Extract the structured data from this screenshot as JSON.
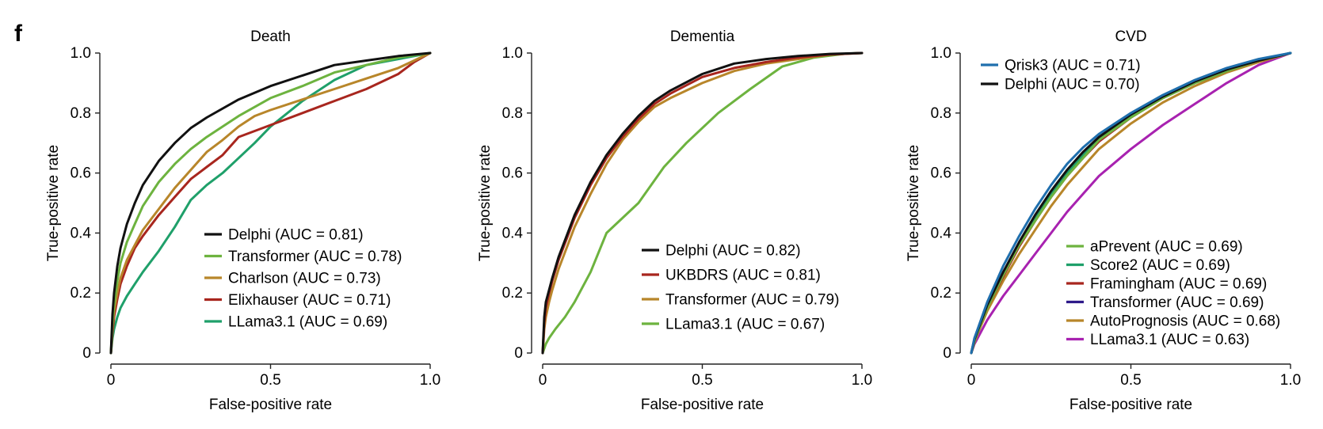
{
  "figure": {
    "panel_label": "f"
  },
  "chart_data": [
    {
      "type": "line",
      "title": "Death",
      "xlabel": "False-positive rate",
      "ylabel": "True-positive rate",
      "xlim": [
        0,
        1
      ],
      "ylim": [
        0,
        1
      ],
      "xticks": [
        "0",
        "0.5",
        "1.0"
      ],
      "yticks": [
        "0",
        "0.2",
        "0.4",
        "0.6",
        "0.8",
        "1.0"
      ],
      "grid": false,
      "legend_position": "bottom-right",
      "series": [
        {
          "name": "Delphi (AUC = 0.81)",
          "color": "#111111",
          "x": [
            0,
            0.005,
            0.01,
            0.02,
            0.03,
            0.05,
            0.075,
            0.1,
            0.15,
            0.2,
            0.25,
            0.3,
            0.4,
            0.5,
            0.6,
            0.7,
            0.8,
            0.9,
            1.0
          ],
          "y": [
            0,
            0.13,
            0.2,
            0.29,
            0.35,
            0.43,
            0.5,
            0.56,
            0.64,
            0.7,
            0.75,
            0.785,
            0.845,
            0.89,
            0.925,
            0.96,
            0.975,
            0.99,
            1.0
          ]
        },
        {
          "name": "Transformer (AUC = 0.78)",
          "color": "#6db33f",
          "x": [
            0,
            0.005,
            0.01,
            0.02,
            0.03,
            0.05,
            0.075,
            0.1,
            0.15,
            0.2,
            0.25,
            0.3,
            0.4,
            0.5,
            0.6,
            0.7,
            0.8,
            0.9,
            1.0
          ],
          "y": [
            0,
            0.1,
            0.16,
            0.24,
            0.3,
            0.37,
            0.43,
            0.49,
            0.57,
            0.63,
            0.68,
            0.72,
            0.79,
            0.85,
            0.89,
            0.935,
            0.96,
            0.985,
            1.0
          ]
        },
        {
          "name": "Charlson (AUC = 0.73)",
          "color": "#b8862a",
          "x": [
            0,
            0.005,
            0.01,
            0.02,
            0.03,
            0.05,
            0.075,
            0.1,
            0.15,
            0.2,
            0.25,
            0.3,
            0.35,
            0.4,
            0.45,
            0.5,
            0.6,
            0.7,
            0.8,
            0.9,
            1.0
          ],
          "y": [
            0,
            0.09,
            0.14,
            0.2,
            0.25,
            0.31,
            0.36,
            0.41,
            0.48,
            0.55,
            0.61,
            0.67,
            0.71,
            0.755,
            0.79,
            0.81,
            0.845,
            0.88,
            0.915,
            0.95,
            1.0
          ]
        },
        {
          "name": "Elixhauser (AUC = 0.71)",
          "color": "#a8261e",
          "x": [
            0,
            0.005,
            0.01,
            0.02,
            0.03,
            0.05,
            0.075,
            0.1,
            0.15,
            0.2,
            0.25,
            0.3,
            0.35,
            0.4,
            0.5,
            0.6,
            0.7,
            0.8,
            0.9,
            0.95,
            1.0
          ],
          "y": [
            0,
            0.07,
            0.12,
            0.18,
            0.23,
            0.29,
            0.35,
            0.39,
            0.46,
            0.52,
            0.58,
            0.62,
            0.66,
            0.72,
            0.76,
            0.8,
            0.84,
            0.88,
            0.93,
            0.97,
            1.0
          ]
        },
        {
          "name": "LLama3.1 (AUC = 0.69)",
          "color": "#1fa06a",
          "x": [
            0,
            0.005,
            0.01,
            0.02,
            0.03,
            0.05,
            0.075,
            0.1,
            0.15,
            0.2,
            0.25,
            0.3,
            0.35,
            0.4,
            0.45,
            0.5,
            0.6,
            0.7,
            0.8,
            0.9,
            1.0
          ],
          "y": [
            0,
            0.05,
            0.08,
            0.12,
            0.15,
            0.19,
            0.23,
            0.27,
            0.34,
            0.42,
            0.51,
            0.56,
            0.6,
            0.65,
            0.7,
            0.755,
            0.84,
            0.91,
            0.96,
            0.98,
            1.0
          ]
        }
      ]
    },
    {
      "type": "line",
      "title": "Dementia",
      "xlabel": "False-positive rate",
      "ylabel": "True-positive rate",
      "xlim": [
        0,
        1
      ],
      "ylim": [
        0,
        1
      ],
      "xticks": [
        "0",
        "0.5",
        "1.0"
      ],
      "yticks": [
        "0",
        "0.2",
        "0.4",
        "0.6",
        "0.8",
        "1.0"
      ],
      "grid": false,
      "legend_position": "bottom-right",
      "series": [
        {
          "name": "Delphi (AUC = 0.82)",
          "color": "#111111",
          "x": [
            0,
            0.005,
            0.01,
            0.02,
            0.03,
            0.05,
            0.075,
            0.1,
            0.15,
            0.2,
            0.25,
            0.3,
            0.35,
            0.4,
            0.5,
            0.6,
            0.7,
            0.8,
            0.9,
            1.0
          ],
          "y": [
            0,
            0.12,
            0.17,
            0.21,
            0.25,
            0.32,
            0.39,
            0.46,
            0.57,
            0.66,
            0.73,
            0.79,
            0.84,
            0.875,
            0.93,
            0.965,
            0.98,
            0.99,
            0.997,
            1.0
          ]
        },
        {
          "name": "UKBDRS (AUC = 0.81)",
          "color": "#a8261e",
          "x": [
            0,
            0.005,
            0.01,
            0.02,
            0.03,
            0.05,
            0.075,
            0.1,
            0.15,
            0.2,
            0.25,
            0.3,
            0.35,
            0.4,
            0.5,
            0.6,
            0.7,
            0.8,
            0.9,
            1.0
          ],
          "y": [
            0,
            0.1,
            0.15,
            0.2,
            0.24,
            0.31,
            0.38,
            0.45,
            0.56,
            0.65,
            0.72,
            0.78,
            0.83,
            0.865,
            0.92,
            0.95,
            0.97,
            0.985,
            0.995,
            1.0
          ]
        },
        {
          "name": "Transformer (AUC = 0.79)",
          "color": "#b8862a",
          "x": [
            0,
            0.005,
            0.01,
            0.02,
            0.03,
            0.05,
            0.075,
            0.1,
            0.15,
            0.2,
            0.25,
            0.3,
            0.35,
            0.4,
            0.5,
            0.6,
            0.7,
            0.8,
            0.9,
            1.0
          ],
          "y": [
            0,
            0.08,
            0.12,
            0.17,
            0.21,
            0.28,
            0.35,
            0.42,
            0.53,
            0.63,
            0.71,
            0.77,
            0.82,
            0.85,
            0.9,
            0.94,
            0.965,
            0.98,
            0.995,
            1.0
          ]
        },
        {
          "name": "LLama3.1 (AUC = 0.67)",
          "color": "#6db33f",
          "x": [
            0,
            0.01,
            0.02,
            0.04,
            0.07,
            0.1,
            0.15,
            0.2,
            0.3,
            0.38,
            0.45,
            0.55,
            0.65,
            0.75,
            0.85,
            0.95,
            1.0
          ],
          "y": [
            0,
            0.03,
            0.05,
            0.08,
            0.12,
            0.17,
            0.27,
            0.4,
            0.5,
            0.62,
            0.7,
            0.8,
            0.88,
            0.955,
            0.985,
            0.998,
            1.0
          ]
        }
      ]
    },
    {
      "type": "line",
      "title": "CVD",
      "xlabel": "False-positive rate",
      "ylabel": "True-positive rate",
      "xlim": [
        0,
        1
      ],
      "ylim": [
        0,
        1
      ],
      "xticks": [
        "0",
        "0.5",
        "1.0"
      ],
      "yticks": [
        "0",
        "0.2",
        "0.4",
        "0.6",
        "0.8",
        "1.0"
      ],
      "grid": false,
      "legend_position": "top-left and bottom-right",
      "series": [
        {
          "name": "Qrisk3 (AUC = 0.71)",
          "color": "#1f6fad",
          "legend_group": "top",
          "x": [
            0,
            0.01,
            0.02,
            0.05,
            0.1,
            0.15,
            0.2,
            0.25,
            0.3,
            0.35,
            0.4,
            0.5,
            0.6,
            0.7,
            0.8,
            0.9,
            1.0
          ],
          "y": [
            0,
            0.05,
            0.08,
            0.17,
            0.29,
            0.39,
            0.48,
            0.56,
            0.63,
            0.685,
            0.73,
            0.8,
            0.86,
            0.91,
            0.95,
            0.98,
            1.0
          ]
        },
        {
          "name": "Delphi (AUC = 0.70)",
          "color": "#111111",
          "legend_group": "top",
          "x": [
            0,
            0.01,
            0.02,
            0.05,
            0.1,
            0.15,
            0.2,
            0.25,
            0.3,
            0.35,
            0.4,
            0.5,
            0.6,
            0.7,
            0.8,
            0.9,
            1.0
          ],
          "y": [
            0,
            0.045,
            0.075,
            0.16,
            0.27,
            0.37,
            0.46,
            0.54,
            0.61,
            0.67,
            0.72,
            0.795,
            0.855,
            0.905,
            0.945,
            0.975,
            1.0
          ]
        },
        {
          "name": "aPrevent (AUC = 0.69)",
          "color": "#6db33f",
          "legend_group": "bottom",
          "x": [
            0,
            0.01,
            0.02,
            0.05,
            0.1,
            0.15,
            0.2,
            0.25,
            0.3,
            0.35,
            0.4,
            0.5,
            0.6,
            0.7,
            0.8,
            0.9,
            1.0
          ],
          "y": [
            0,
            0.04,
            0.07,
            0.15,
            0.26,
            0.36,
            0.44,
            0.52,
            0.59,
            0.65,
            0.71,
            0.785,
            0.85,
            0.9,
            0.94,
            0.975,
            1.0
          ]
        },
        {
          "name": "Score2 (AUC = 0.69)",
          "color": "#1fa06a",
          "legend_group": "bottom",
          "x": [
            0,
            0.01,
            0.02,
            0.05,
            0.1,
            0.15,
            0.2,
            0.25,
            0.3,
            0.35,
            0.4,
            0.5,
            0.6,
            0.7,
            0.8,
            0.9,
            1.0
          ],
          "y": [
            0,
            0.04,
            0.07,
            0.155,
            0.265,
            0.365,
            0.45,
            0.53,
            0.6,
            0.66,
            0.715,
            0.79,
            0.85,
            0.9,
            0.94,
            0.975,
            1.0
          ]
        },
        {
          "name": "Framingham (AUC = 0.69)",
          "color": "#a8261e",
          "legend_group": "bottom",
          "x": [
            0,
            0.01,
            0.02,
            0.05,
            0.1,
            0.15,
            0.2,
            0.25,
            0.3,
            0.35,
            0.4,
            0.5,
            0.6,
            0.7,
            0.8,
            0.9,
            1.0
          ],
          "y": [
            0,
            0.04,
            0.07,
            0.15,
            0.255,
            0.355,
            0.44,
            0.52,
            0.59,
            0.65,
            0.705,
            0.785,
            0.85,
            0.9,
            0.94,
            0.975,
            1.0
          ]
        },
        {
          "name": "Transformer (AUC = 0.69)",
          "color": "#2e1a8a",
          "legend_group": "bottom",
          "x": [
            0,
            0.01,
            0.02,
            0.05,
            0.1,
            0.15,
            0.2,
            0.25,
            0.3,
            0.35,
            0.4,
            0.5,
            0.6,
            0.7,
            0.8,
            0.9,
            1.0
          ],
          "y": [
            0,
            0.045,
            0.075,
            0.16,
            0.265,
            0.365,
            0.45,
            0.53,
            0.6,
            0.66,
            0.715,
            0.79,
            0.855,
            0.905,
            0.945,
            0.975,
            1.0
          ]
        },
        {
          "name": "AutoPrognosis (AUC = 0.68)",
          "color": "#b8862a",
          "legend_group": "bottom",
          "x": [
            0,
            0.01,
            0.02,
            0.05,
            0.1,
            0.15,
            0.2,
            0.25,
            0.3,
            0.35,
            0.4,
            0.5,
            0.6,
            0.7,
            0.8,
            0.9,
            1.0
          ],
          "y": [
            0,
            0.035,
            0.065,
            0.14,
            0.24,
            0.33,
            0.41,
            0.49,
            0.56,
            0.62,
            0.68,
            0.765,
            0.835,
            0.89,
            0.935,
            0.97,
            1.0
          ]
        },
        {
          "name": "LLama3.1 (AUC = 0.63)",
          "color": "#a822b0",
          "legend_group": "bottom",
          "x": [
            0,
            0.01,
            0.02,
            0.05,
            0.1,
            0.15,
            0.2,
            0.25,
            0.3,
            0.35,
            0.4,
            0.5,
            0.6,
            0.7,
            0.8,
            0.9,
            1.0
          ],
          "y": [
            0,
            0.03,
            0.05,
            0.11,
            0.19,
            0.26,
            0.33,
            0.4,
            0.47,
            0.53,
            0.59,
            0.68,
            0.76,
            0.83,
            0.9,
            0.96,
            1.0
          ]
        }
      ]
    }
  ]
}
